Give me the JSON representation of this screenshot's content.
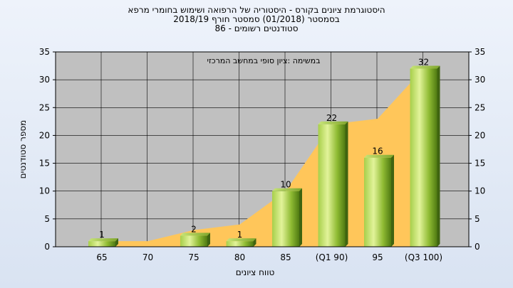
{
  "chart_data": {
    "type": "bar",
    "title_lines": [
      "היסטוגרמת ציונים בקורס - היסטוריה של הרפואה ושימוש בחומרי מרפא",
      "בסמסטר  (01/2018)  סמסטר חורף 2018/19",
      "סטודנטים רשומים - 86"
    ],
    "annotation": "במשימה :ציון סופי במחשב המרכזי",
    "xlabel": "טווח ציונים",
    "ylabel": "מספר סטודנטים",
    "categories": [
      "65",
      "70",
      "75",
      "80",
      "85",
      "(Q1 90)",
      "95",
      "(Q3 100)"
    ],
    "values": [
      1,
      0,
      2,
      1,
      10,
      22,
      16,
      32
    ],
    "data_labels": [
      "1",
      "",
      "2",
      "1",
      "10",
      "22",
      "16",
      "32"
    ],
    "cumulative_area": [
      1,
      1,
      3,
      4,
      10,
      22,
      23,
      32
    ],
    "ylim": [
      0,
      35
    ],
    "yticks": [
      0,
      5,
      10,
      15,
      20,
      25,
      30,
      35
    ],
    "grid": true,
    "colors": {
      "plot_bg": "#c0c0c0",
      "bar_light": "#d8ee8a",
      "bar_mid": "#9cc63c",
      "bar_dark": "#4f7a12",
      "area": "#ffc65a",
      "grid": "#000000"
    }
  }
}
